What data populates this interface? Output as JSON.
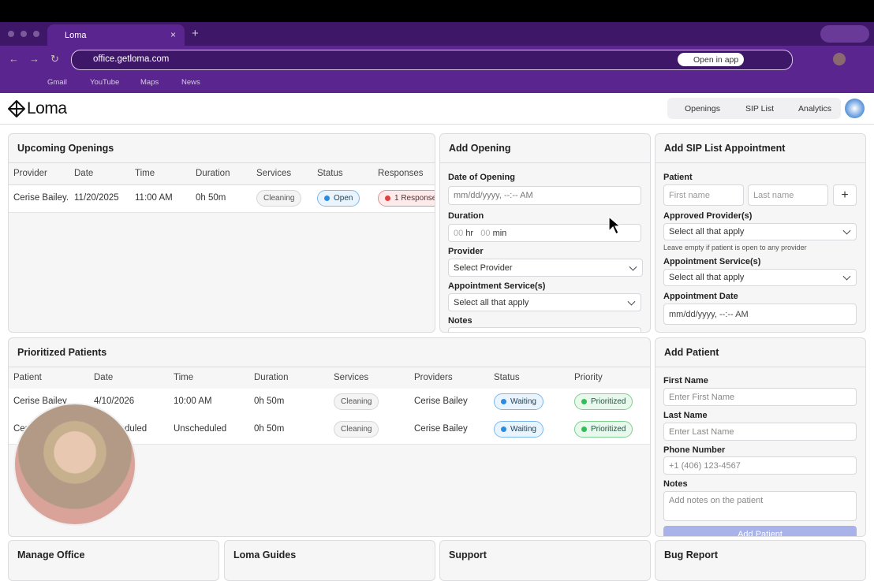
{
  "browser": {
    "tab_title": "Loma",
    "url": "office.getloma.com",
    "open_in_app": "Open in app",
    "bookmarks": [
      "Gmail",
      "YouTube",
      "Maps",
      "News"
    ]
  },
  "app": {
    "logo": "Loma",
    "nav": [
      "Openings",
      "SIP List",
      "Analytics"
    ]
  },
  "upcoming": {
    "title": "Upcoming Openings",
    "columns": [
      "Provider",
      "Date",
      "Time",
      "Duration",
      "Services",
      "Status",
      "Responses"
    ],
    "rows": [
      [
        "Cerise Bailey.",
        "11/20/2025",
        "11:00 AM",
        "0h 50m",
        "Cleaning",
        "Open",
        "1 Response"
      ]
    ]
  },
  "add_opening": {
    "title": "Add Opening",
    "date_label": "Date of Opening",
    "date_placeholder": "mm/dd/yyyy, --:-- AM",
    "duration_label": "Duration",
    "duration_hr": "00",
    "hr": "hr",
    "duration_min": "00",
    "min": "min",
    "provider_label": "Provider",
    "provider_placeholder": "Select Provider",
    "services_label": "Appointment Service(s)",
    "services_placeholder": "Select all that apply",
    "notes_label": "Notes"
  },
  "sip": {
    "title": "Add SIP List Appointment",
    "patient_label": "Patient",
    "first_placeholder": "First name",
    "last_placeholder": "Last name",
    "add": "+",
    "providers_label": "Approved Provider(s)",
    "providers_placeholder": "Select all that apply",
    "providers_hint": "Leave empty if patient is open to any provider",
    "services_label": "Appointment Service(s)",
    "services_placeholder": "Select all that apply",
    "date_label": "Appointment Date",
    "date_placeholder": "mm/dd/yyyy, --:-- AM"
  },
  "prioritized": {
    "title": "Prioritized Patients",
    "columns": [
      "Patient",
      "Date",
      "Time",
      "Duration",
      "Services",
      "Providers",
      "Status",
      "Priority"
    ],
    "rows": [
      [
        "Cerise Bailey",
        "4/10/2026",
        "10:00 AM",
        "0h 50m",
        "Cleaning",
        "Cerise Bailey",
        "Waiting",
        "Prioritized"
      ],
      [
        "Cerise Bailey",
        "Unscheduled",
        "Unscheduled",
        "0h 50m",
        "Cleaning",
        "Cerise Bailey",
        "Waiting",
        "Prioritized"
      ]
    ]
  },
  "add_patient": {
    "title": "Add Patient",
    "first_label": "First Name",
    "first_placeholder": "Enter First Name",
    "last_label": "Last Name",
    "last_placeholder": "Enter Last Name",
    "phone_label": "Phone Number",
    "phone_placeholder": "+1 (406) 123-4567",
    "notes_label": "Notes",
    "notes_placeholder": "Add notes on the patient",
    "button": "Add Patient"
  },
  "bottom_cards": [
    "Manage Office",
    "Loma Guides",
    "Support",
    "Bug Report"
  ]
}
